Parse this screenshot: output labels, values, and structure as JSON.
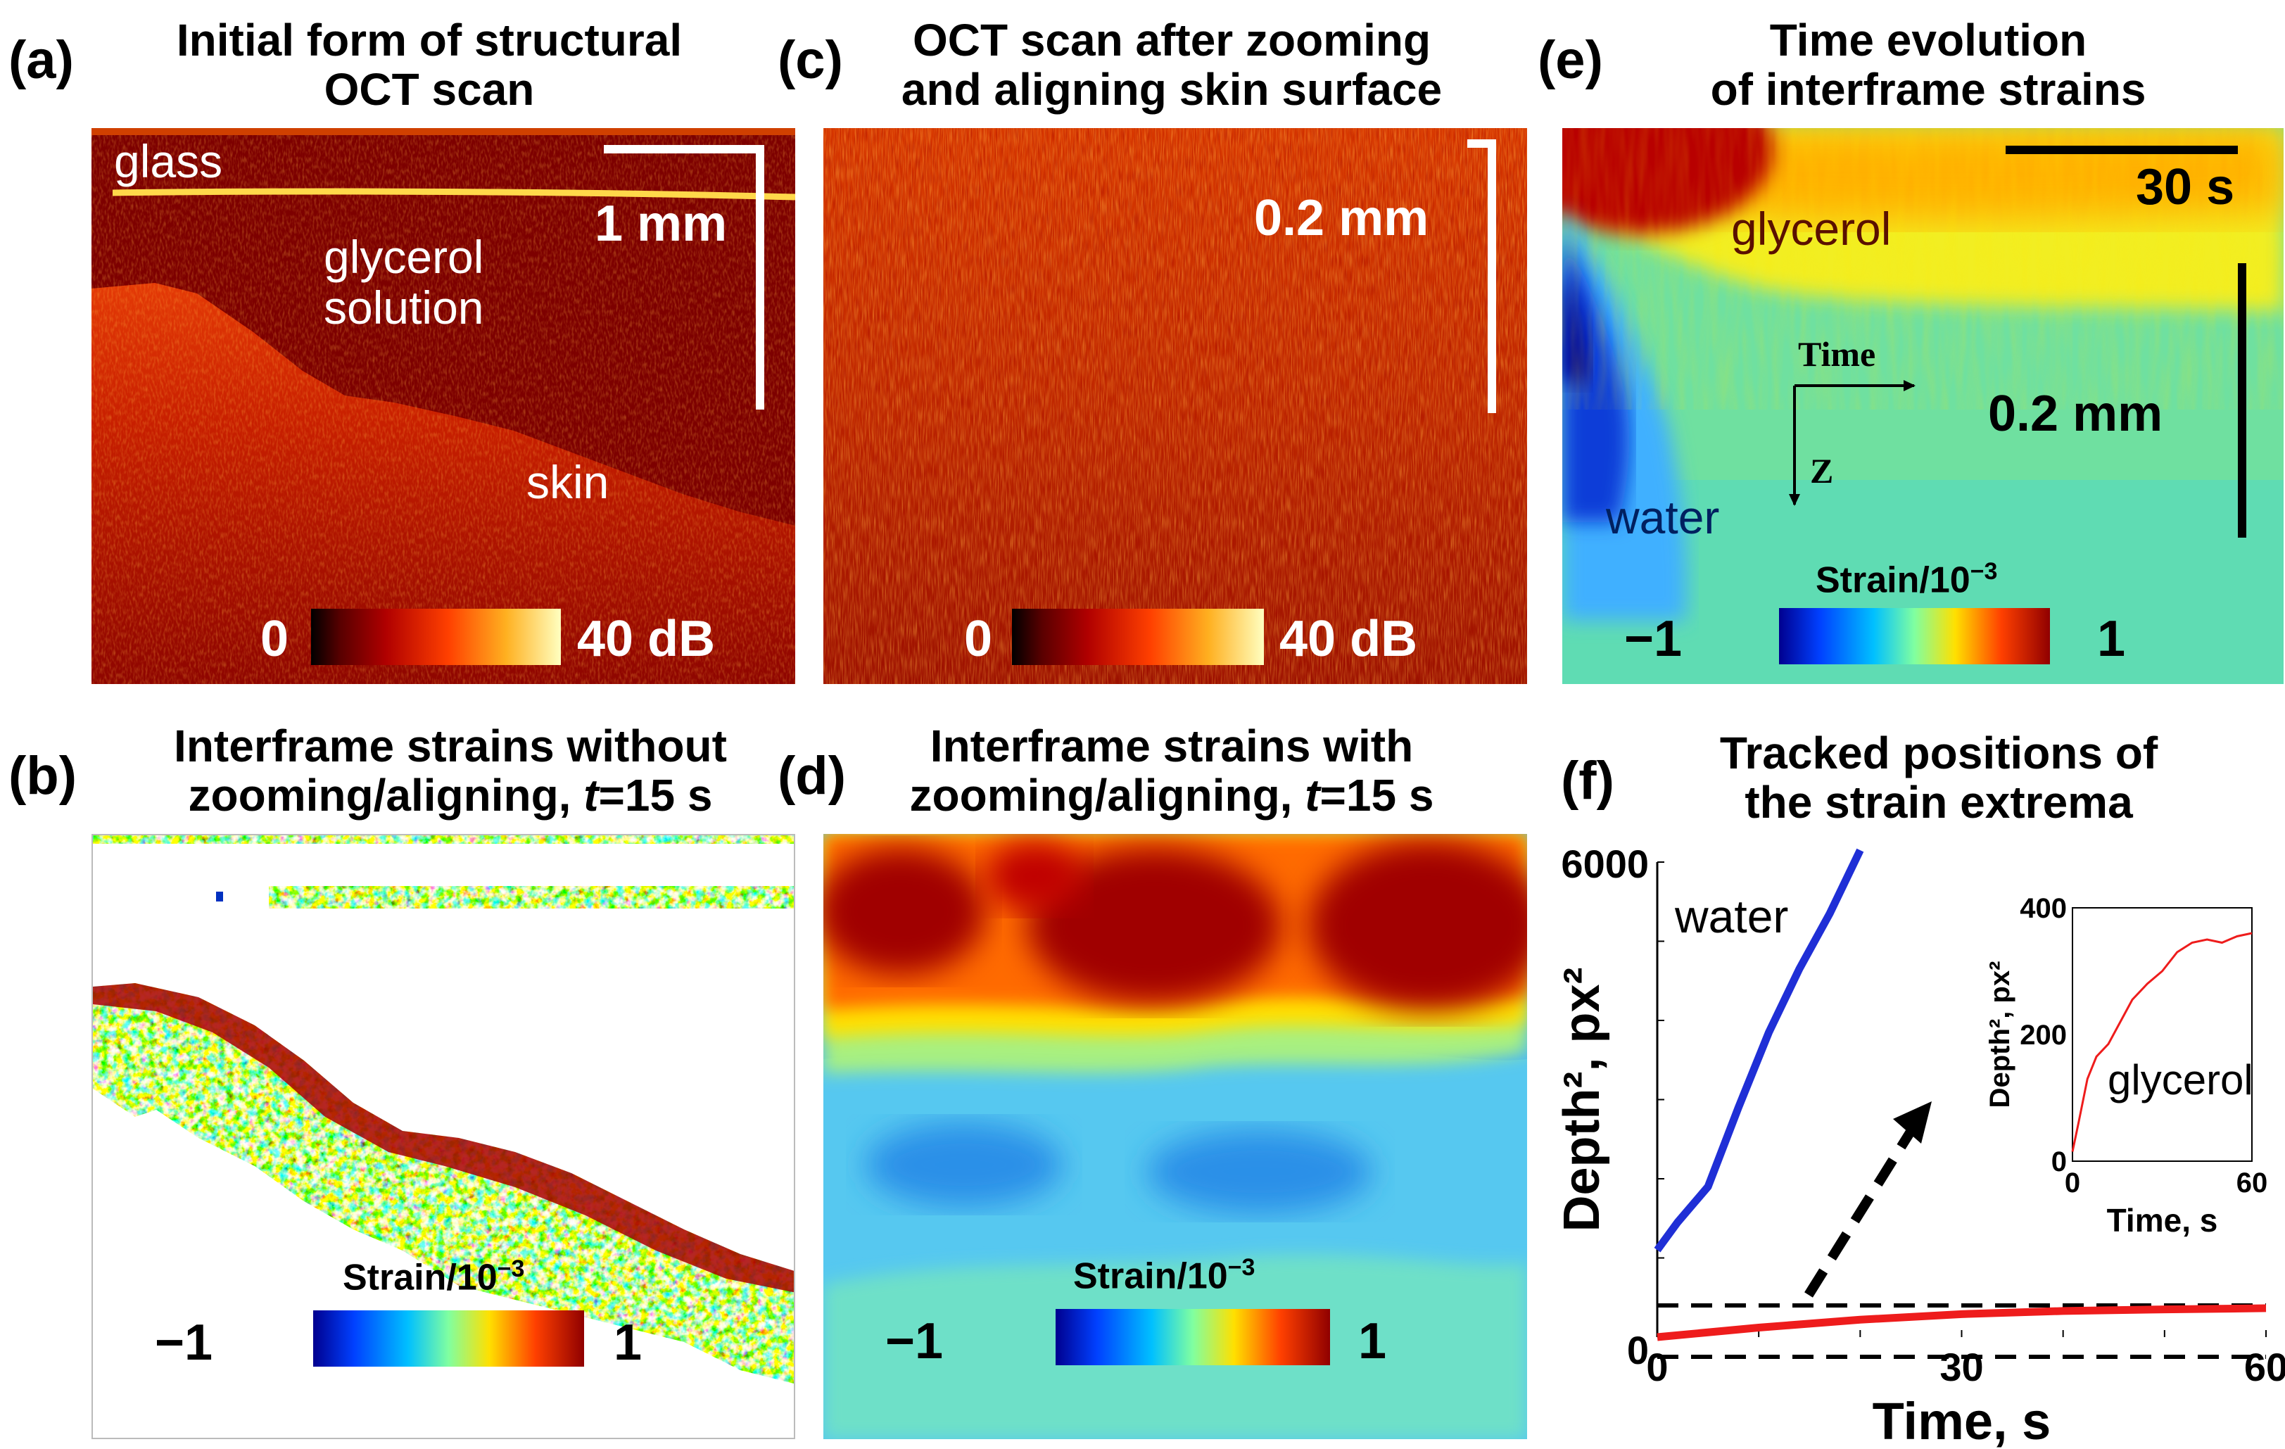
{
  "panels": {
    "a": {
      "label": "(a)",
      "title_line1": "Initial form of structural",
      "title_line2": "OCT scan",
      "glass": "glass",
      "glycerol_line1": "glycerol",
      "glycerol_line2": "solution",
      "skin": "skin",
      "scale": "1 mm",
      "cbar_min": "0",
      "cbar_max": "40 dB"
    },
    "b": {
      "label": "(b)",
      "title_line1": "Interframe strains without",
      "title_line2_pre": "zooming/aligning, ",
      "title_line2_var": "t",
      "title_line2_post": "=15 s",
      "cbar_title_pre": "Strain/10",
      "cbar_title_exp": "−3",
      "cbar_min": "−1",
      "cbar_max": "1"
    },
    "c": {
      "label": "(c)",
      "title_line1": "OCT scan after zooming",
      "title_line2": "and aligning skin surface",
      "scale": "0.2 mm",
      "cbar_min": "0",
      "cbar_max": "40 dB"
    },
    "d": {
      "label": "(d)",
      "title_line1": "Interframe strains with",
      "title_line2_pre": "zooming/aligning, ",
      "title_line2_var": "t",
      "title_line2_post": "=15 s",
      "cbar_title_pre": "Strain/10",
      "cbar_title_exp": "−3",
      "cbar_min": "−1",
      "cbar_max": "1"
    },
    "e": {
      "label": "(e)",
      "title_line1": "Time evolution",
      "title_line2": "of interframe strains",
      "time_scale": "30 s",
      "depth_scale": "0.2 mm",
      "glycerol": "glycerol",
      "water": "water",
      "axis_time": "Time",
      "axis_z": "Z",
      "cbar_title_pre": "Strain/10",
      "cbar_title_exp": "−3",
      "cbar_min": "−1",
      "cbar_max": "1"
    },
    "f": {
      "label": "(f)",
      "title_line1": "Tracked positions of",
      "title_line2": "the strain extrema",
      "water": "water",
      "glycerol": "glycerol"
    }
  },
  "colors": {
    "oct_dark": "#7a0000",
    "jet_blue": "#0000c8",
    "jet_red": "#b00000",
    "water_line": "#1f2fd6",
    "glycerol_line": "#ee1c1c"
  },
  "chart_data": {
    "type": "line",
    "title": "Tracked positions of the strain extrema",
    "xlabel": "Time, s",
    "ylabel": "Depth², px²",
    "x_ticks": [
      "0",
      "30",
      "60"
    ],
    "y_ticks": [
      "0",
      "6000"
    ],
    "xlim": [
      0,
      60
    ],
    "ylim": [
      0,
      6000
    ],
    "series": [
      {
        "name": "water",
        "x": [
          0,
          2,
          5,
          8,
          11,
          14,
          17,
          20
        ],
        "y": [
          1100,
          1450,
          1900,
          2900,
          3850,
          4650,
          5350,
          6150
        ]
      },
      {
        "name": "glycerol",
        "x": [
          0,
          10,
          20,
          30,
          40,
          50,
          60
        ],
        "y": [
          0,
          120,
          220,
          290,
          330,
          350,
          365
        ]
      }
    ],
    "dashed_lines_y": [
      0,
      400
    ],
    "inset": {
      "type": "line",
      "xlabel": "Time, s",
      "ylabel": "Depth², px²",
      "x_ticks": [
        "0",
        "60"
      ],
      "y_ticks": [
        "0",
        "200",
        "400"
      ],
      "xlim": [
        0,
        60
      ],
      "ylim": [
        0,
        400
      ],
      "series": [
        {
          "name": "glycerol",
          "x": [
            0,
            2,
            5,
            8,
            12,
            16,
            20,
            25,
            30,
            35,
            40,
            45,
            50,
            55,
            60
          ],
          "y": [
            15,
            60,
            130,
            165,
            185,
            220,
            255,
            280,
            300,
            330,
            345,
            350,
            345,
            355,
            360
          ]
        }
      ]
    }
  }
}
